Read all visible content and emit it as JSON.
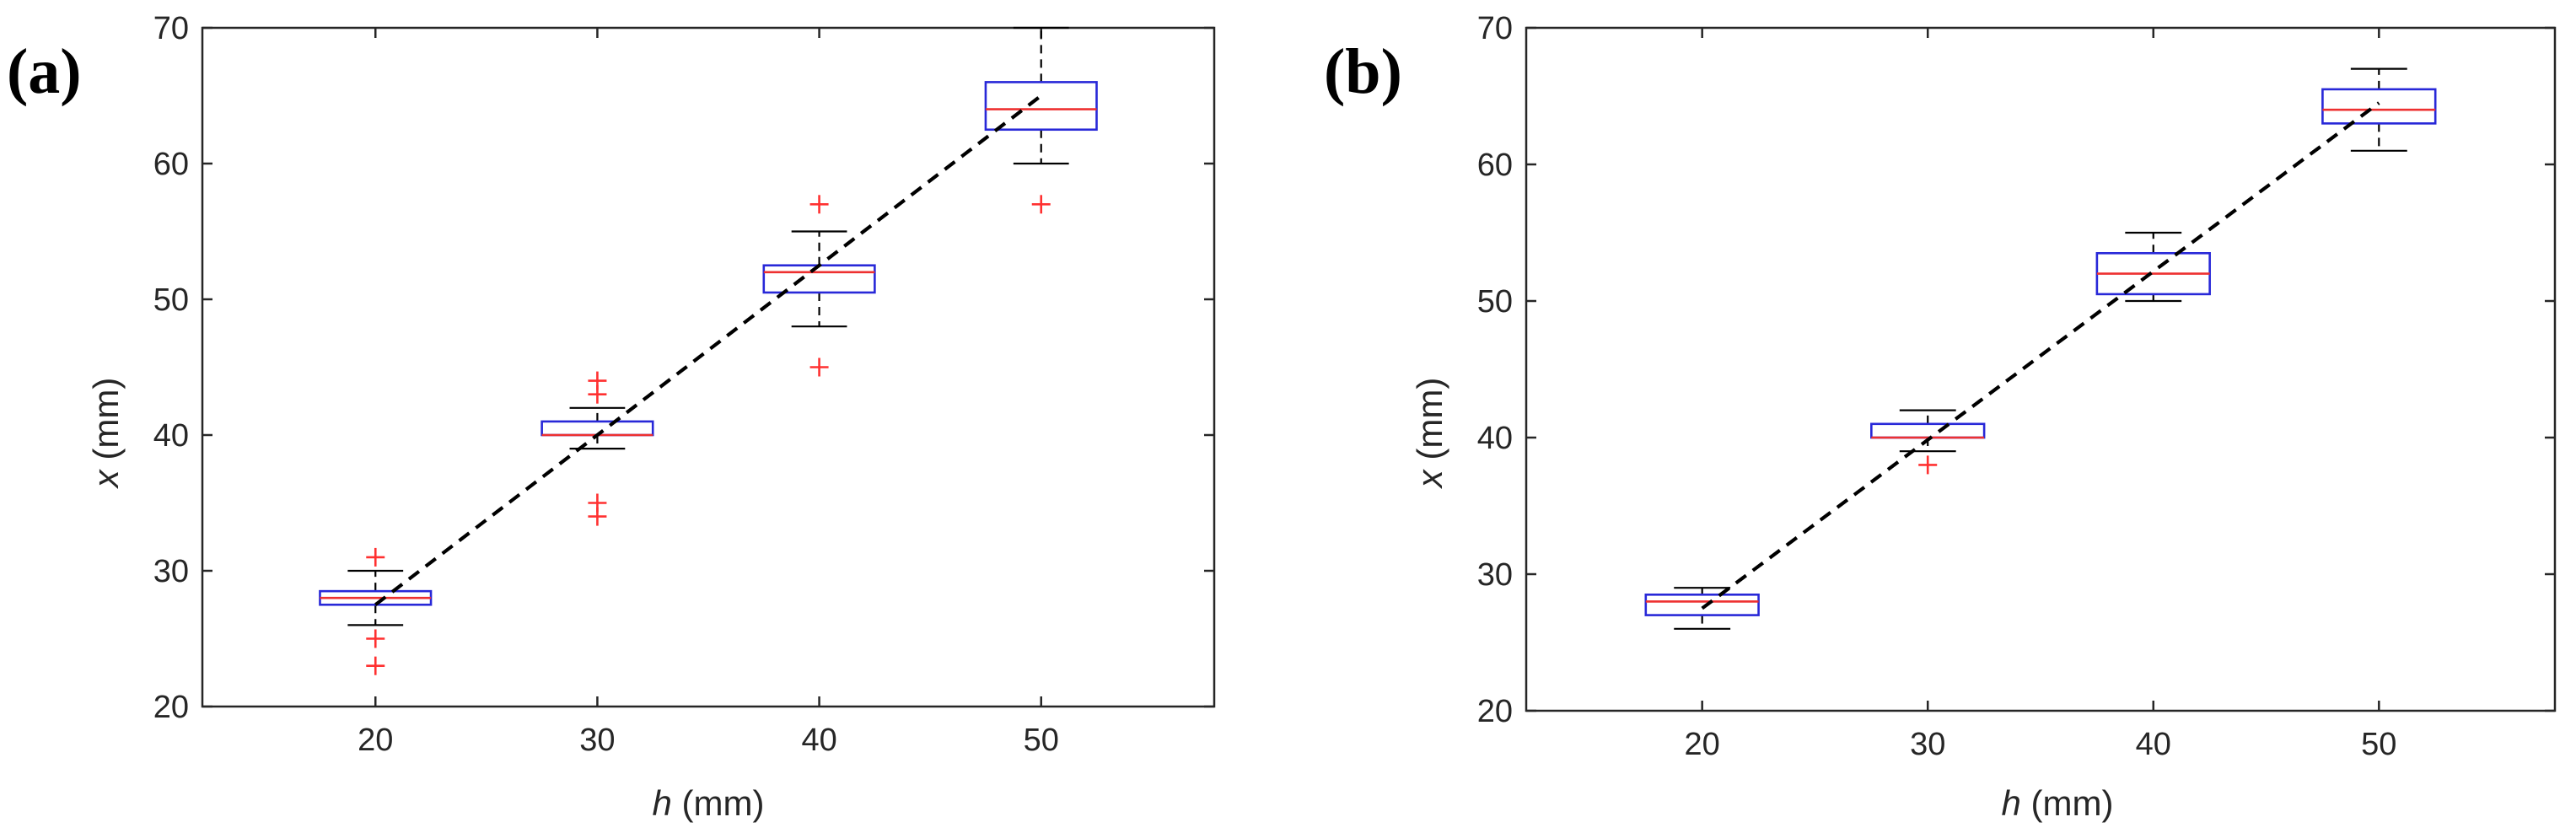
{
  "chart_data": [
    {
      "type": "box",
      "panel_label": "(a)",
      "categories": [
        "20",
        "30",
        "40",
        "50"
      ],
      "x": [
        20,
        30,
        40,
        50
      ],
      "xlabel_var": "h",
      "xlabel_unit": " (mm)",
      "ylabel_var": "x",
      "ylabel_unit": " (mm)",
      "ylim": [
        20,
        70
      ],
      "yticks": [
        "20",
        "30",
        "40",
        "50",
        "60",
        "70"
      ],
      "boxes": [
        {
          "q1": 27.5,
          "median": 28,
          "q3": 28.5,
          "whisker_low": 26,
          "whisker_high": 30,
          "outliers": [
            31,
            25,
            23
          ]
        },
        {
          "q1": 40,
          "median": 40,
          "q3": 41,
          "whisker_low": 39,
          "whisker_high": 42,
          "outliers": [
            44,
            43,
            35,
            34
          ]
        },
        {
          "q1": 50.5,
          "median": 52,
          "q3": 52.5,
          "whisker_low": 48,
          "whisker_high": 55,
          "outliers": [
            57,
            45
          ]
        },
        {
          "q1": 62.5,
          "median": 64,
          "q3": 66,
          "whisker_low": 60,
          "whisker_high": 70,
          "outliers": [
            57
          ]
        }
      ],
      "fit_line": {
        "x": [
          20,
          50
        ],
        "y": [
          27.5,
          65
        ]
      }
    },
    {
      "type": "box",
      "panel_label": "(b)",
      "categories": [
        "20",
        "30",
        "40",
        "50"
      ],
      "x": [
        20,
        30,
        40,
        50
      ],
      "xlabel_var": "h",
      "xlabel_unit": " (mm)",
      "ylabel_var": "x",
      "ylabel_unit": " (mm)",
      "ylim": [
        20,
        70
      ],
      "yticks": [
        "20",
        "30",
        "40",
        "50",
        "60",
        "70"
      ],
      "boxes": [
        {
          "q1": 27,
          "median": 28,
          "q3": 28.5,
          "whisker_low": 26,
          "whisker_high": 29,
          "outliers": []
        },
        {
          "q1": 40,
          "median": 40,
          "q3": 41,
          "whisker_low": 39,
          "whisker_high": 42,
          "outliers": [
            38
          ]
        },
        {
          "q1": 50.5,
          "median": 52,
          "q3": 53.5,
          "whisker_low": 50,
          "whisker_high": 55,
          "outliers": []
        },
        {
          "q1": 63,
          "median": 64,
          "q3": 65.5,
          "whisker_low": 61,
          "whisker_high": 67,
          "outliers": []
        }
      ],
      "fit_line": {
        "x": [
          20,
          50
        ],
        "y": [
          27.5,
          64.5
        ]
      }
    }
  ],
  "colors": {
    "box": "#2828d8",
    "median": "#ee3030",
    "outlier": "#ff3030",
    "whisker": "#000000",
    "axis": "#262626"
  }
}
